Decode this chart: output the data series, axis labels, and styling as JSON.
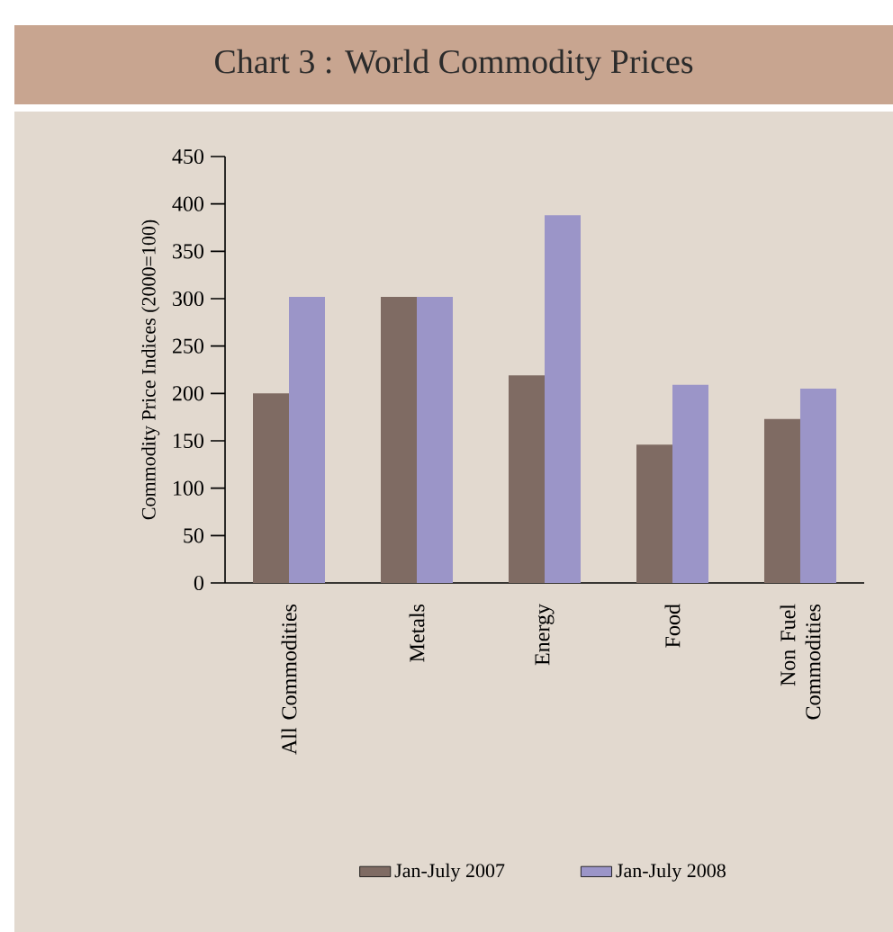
{
  "chart_data": {
    "type": "bar",
    "title": "Chart 3 : World Commodity Prices",
    "ylabel": "Commodity Price Indices (2000=100)",
    "categories": [
      "All Commodities",
      "Metals",
      "Energy",
      "Food",
      "Non Fuel Commodities"
    ],
    "series": [
      {
        "name": "Jan-July 2007",
        "color": "#7f6b63",
        "values": [
          200,
          302,
          219,
          146,
          173
        ]
      },
      {
        "name": "Jan-July 2008",
        "color": "#9b95c8",
        "values": [
          302,
          302,
          388,
          209,
          205
        ]
      }
    ],
    "ylim": [
      0,
      450
    ],
    "yticks": [
      0,
      50,
      100,
      150,
      200,
      250,
      300,
      350,
      400,
      450
    ],
    "legend": "bottom"
  }
}
